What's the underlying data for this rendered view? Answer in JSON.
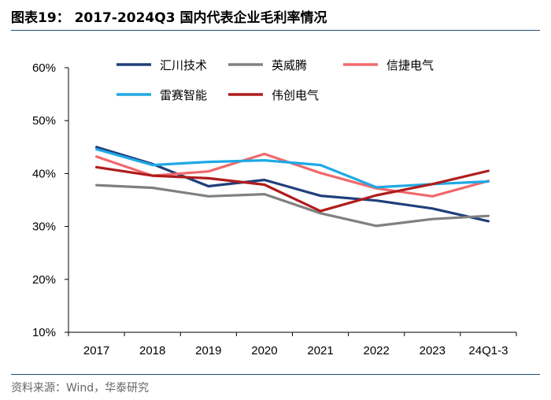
{
  "figure": {
    "title": "图表19： 2017-2024Q3 国内代表企业毛利率情况",
    "source": "资料来源：Wind，华泰研究"
  },
  "chart_data": {
    "type": "line",
    "categories": [
      "2017",
      "2018",
      "2019",
      "2020",
      "2021",
      "2022",
      "2023",
      "24Q1-3"
    ],
    "ylim": [
      10,
      60
    ],
    "yticks": [
      10,
      20,
      30,
      40,
      50,
      60
    ],
    "ytick_labels": [
      "10%",
      "20%",
      "30%",
      "40%",
      "50%",
      "60%"
    ],
    "xlabel": "",
    "ylabel": "",
    "grid": false,
    "legend_position": "top",
    "series": [
      {
        "name": "汇川技术",
        "color": "#1f3f7a",
        "values": [
          45.0,
          41.8,
          37.6,
          38.8,
          35.8,
          34.9,
          33.4,
          31.0
        ]
      },
      {
        "name": "英威腾",
        "color": "#808080",
        "values": [
          37.8,
          37.3,
          35.7,
          36.1,
          32.5,
          30.1,
          31.4,
          32.0
        ]
      },
      {
        "name": "信捷电气",
        "color": "#f0696b",
        "values": [
          43.2,
          39.6,
          40.4,
          43.7,
          40.1,
          37.2,
          35.7,
          38.6
        ]
      },
      {
        "name": "雷赛智能",
        "color": "#1fa9e5",
        "values": [
          44.6,
          41.6,
          42.2,
          42.5,
          41.6,
          37.4,
          38.0,
          38.5
        ]
      },
      {
        "name": "伟创电气",
        "color": "#b01c1c",
        "values": [
          41.2,
          39.6,
          39.1,
          37.9,
          32.9,
          35.9,
          38.0,
          40.5
        ]
      }
    ]
  }
}
